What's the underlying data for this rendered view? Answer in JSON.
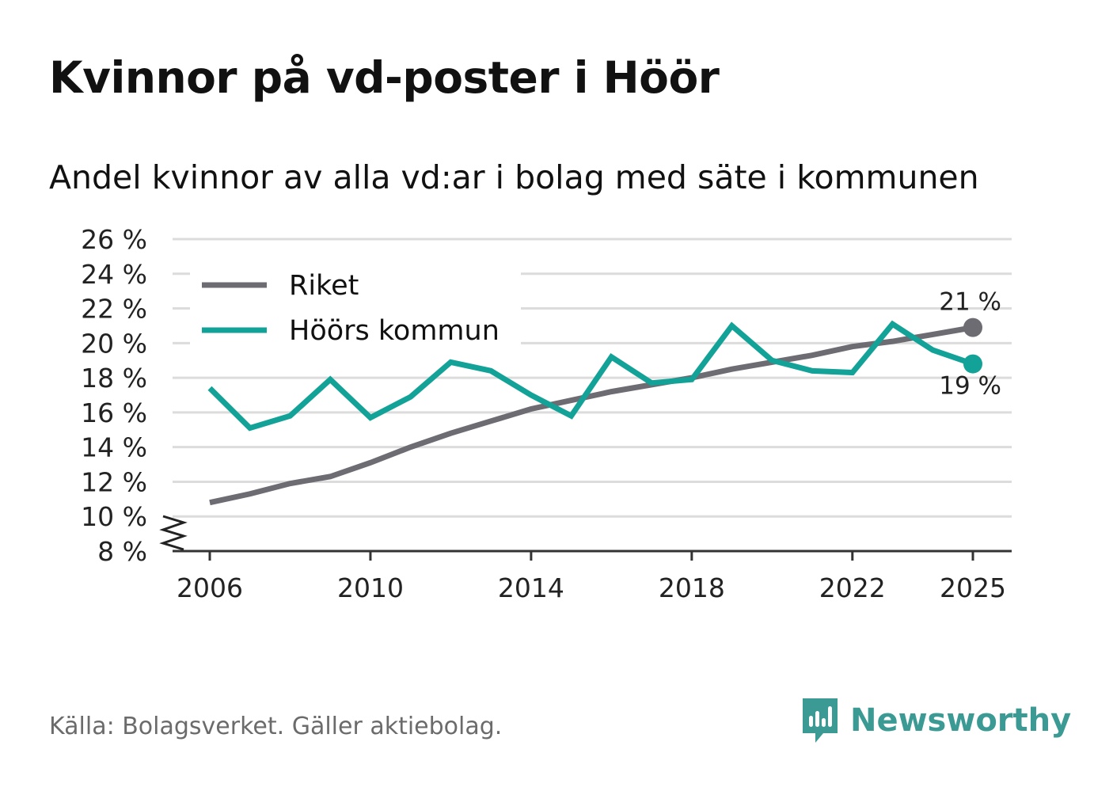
{
  "header": {
    "title": "Kvinnor på vd-poster i Höör",
    "subtitle": "Andel kvinnor av alla vd:ar i bolag med säte i kommunen"
  },
  "footer": {
    "source": "Källa: Bolagsverket. Gäller aktiebolag.",
    "brand": "Newsworthy"
  },
  "colors": {
    "riket": "#6d6c72",
    "kommun": "#12a297",
    "grid": "#dcdcdc",
    "brand": "#3b9a93"
  },
  "chart_data": {
    "type": "line",
    "title": "Kvinnor på vd-poster i Höör",
    "subtitle": "Andel kvinnor av alla vd:ar i bolag med säte i kommunen",
    "xlabel": "",
    "ylabel": "",
    "x": [
      2006,
      2007,
      2008,
      2009,
      2010,
      2011,
      2012,
      2013,
      2014,
      2015,
      2016,
      2017,
      2018,
      2019,
      2020,
      2021,
      2022,
      2023,
      2024,
      2025
    ],
    "xticks": [
      2006,
      2010,
      2014,
      2018,
      2022,
      2025
    ],
    "xtick_labels": [
      "2006",
      "2010",
      "2014",
      "2018",
      "2022",
      "2025"
    ],
    "yticks": [
      8,
      10,
      12,
      14,
      16,
      18,
      20,
      22,
      24,
      26
    ],
    "ytick_labels": [
      "8 %",
      "10 %",
      "12 %",
      "14 %",
      "16 %",
      "18 %",
      "20 %",
      "22 %",
      "24 %",
      "26 %"
    ],
    "ylim": [
      8,
      26
    ],
    "axis_break": true,
    "grid": true,
    "legend_position": "top-left",
    "series": [
      {
        "name": "Riket",
        "color_key": "riket",
        "values": [
          10.8,
          11.3,
          11.9,
          12.3,
          13.1,
          14.0,
          14.8,
          15.5,
          16.2,
          16.7,
          17.2,
          17.6,
          18.0,
          18.5,
          18.9,
          19.3,
          19.8,
          20.1,
          20.5,
          20.9
        ],
        "end_label": "21 %"
      },
      {
        "name": "Höörs kommun",
        "color_key": "kommun",
        "values": [
          17.4,
          15.1,
          15.8,
          17.9,
          15.7,
          16.9,
          18.9,
          18.4,
          17.0,
          15.8,
          19.2,
          17.7,
          17.9,
          21.0,
          19.0,
          18.4,
          18.3,
          21.1,
          19.6,
          18.8
        ],
        "end_label": "19 %"
      }
    ]
  }
}
